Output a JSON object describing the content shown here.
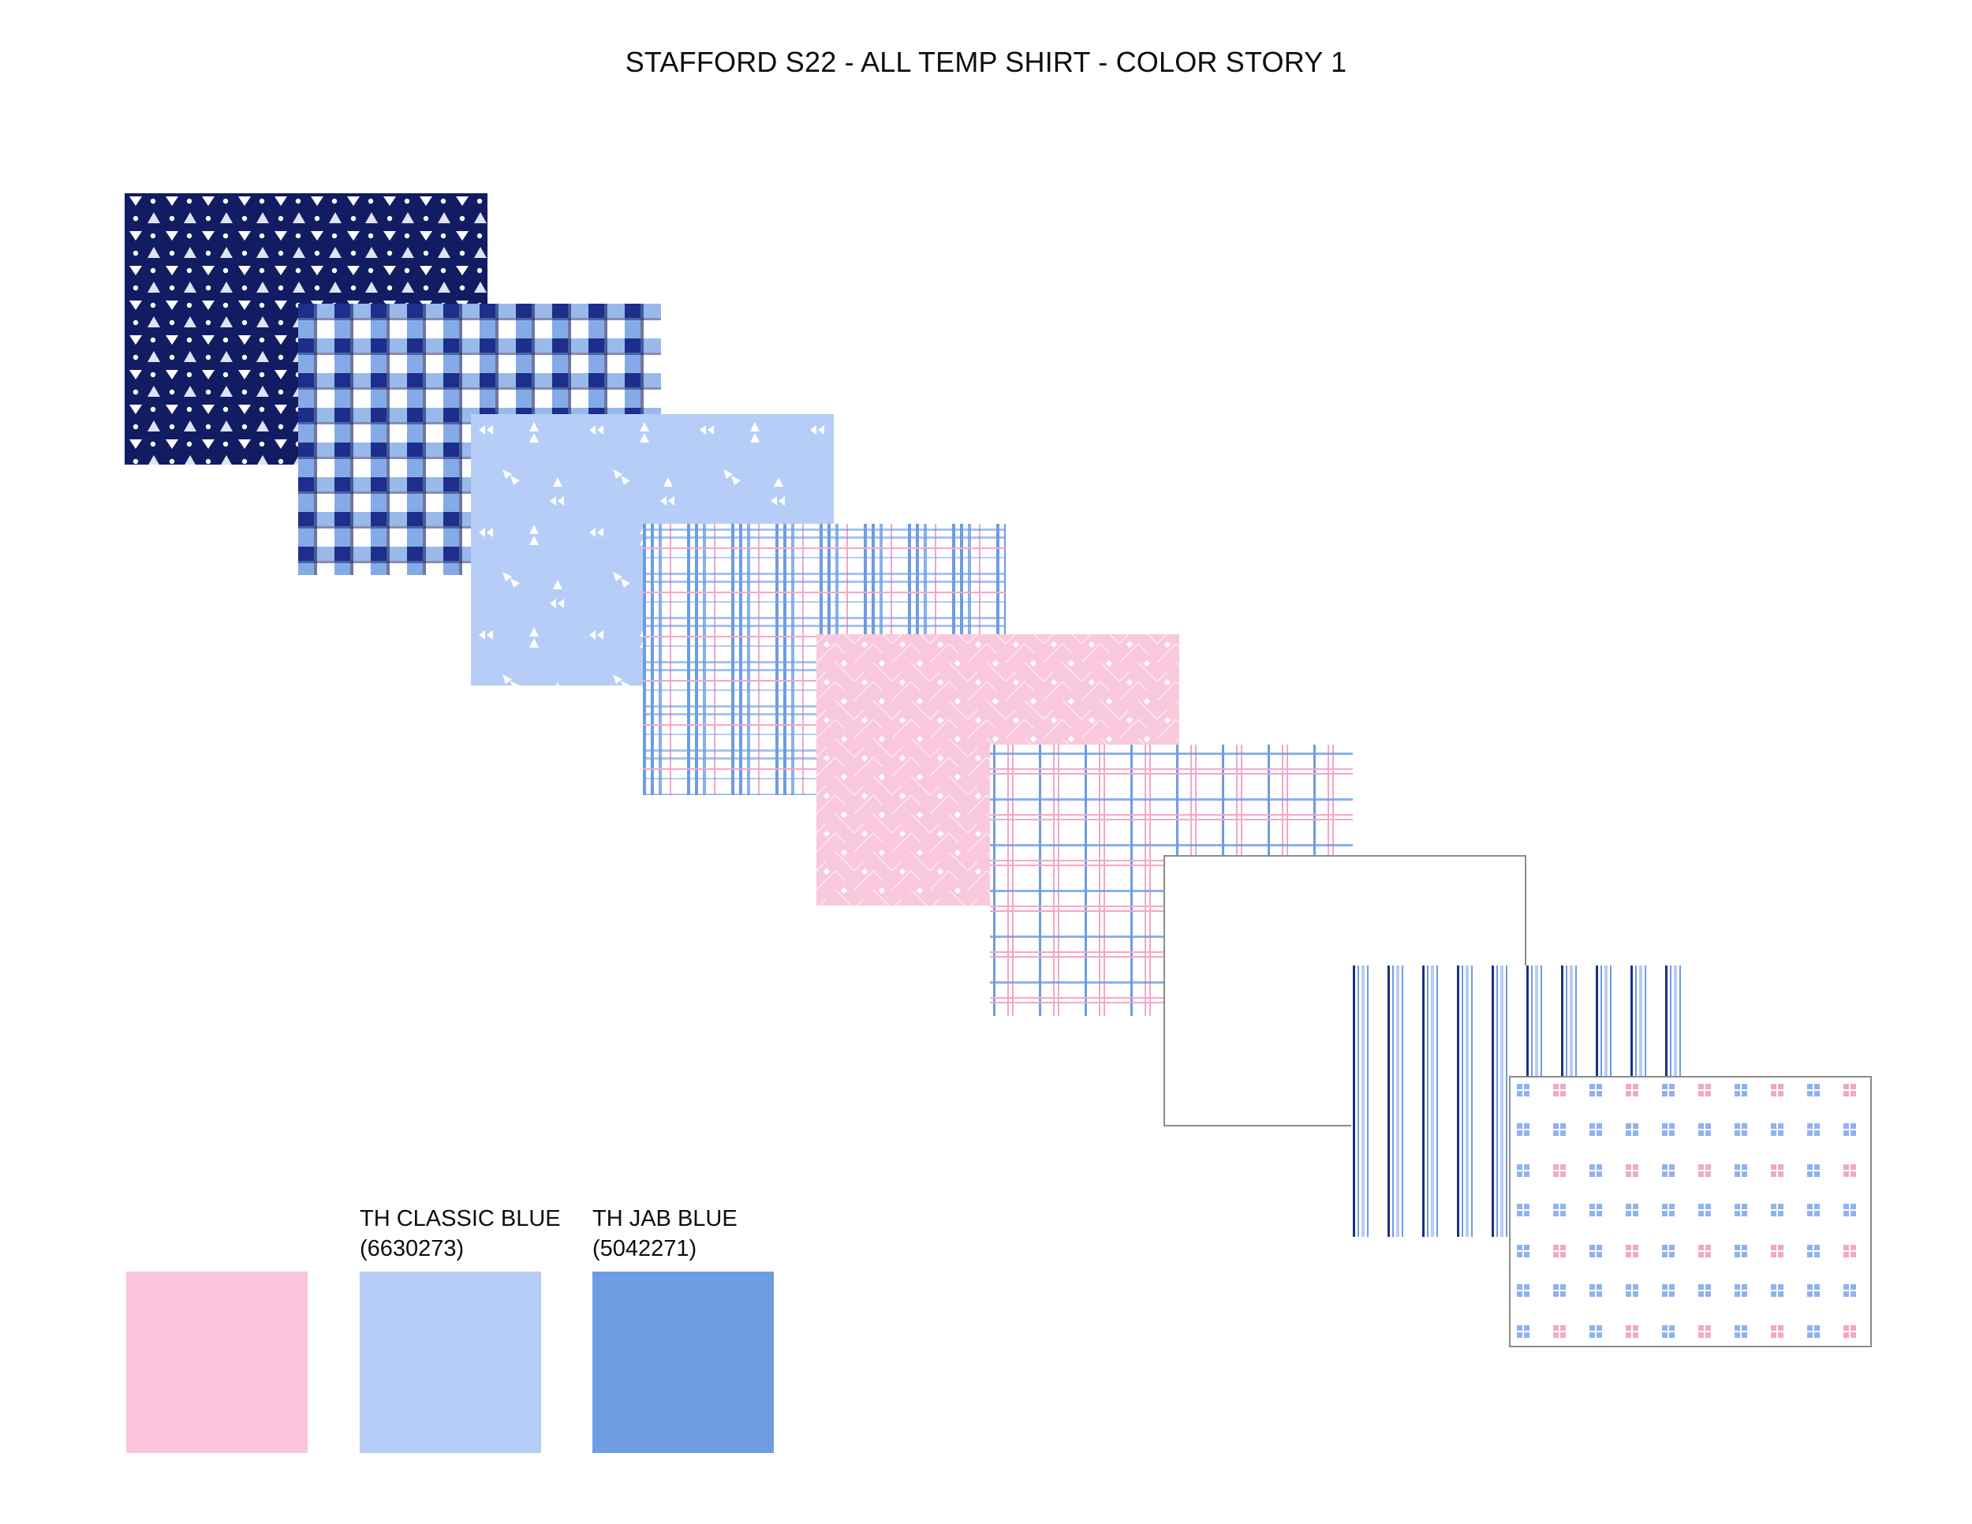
{
  "title": "STAFFORD S22 - ALL TEMP SHIRT - COLOR STORY 1",
  "colors": {
    "pink": "#fcc3dc",
    "classic_blue": "#b6cdf7",
    "jab_blue": "#6e9ce3",
    "navy": "#121c63"
  },
  "fabrics": [
    "navy-triangle-dot-print",
    "navy-blue-gingham",
    "light-blue-arrow-print",
    "blue-pink-glen-plaid",
    "pink-herringbone-dobby",
    "pink-blue-windowpane",
    "white-solid",
    "blue-bengal-stripe",
    "white-square-dot-print"
  ],
  "chips": [
    {
      "name": "",
      "code": "",
      "color": "#fcc3dc"
    },
    {
      "name": "TH CLASSIC BLUE",
      "code": "(6630273)",
      "color": "#b6cdf7"
    },
    {
      "name": "TH JAB BLUE",
      "code": "(5042271)",
      "color": "#6e9ce3"
    }
  ]
}
